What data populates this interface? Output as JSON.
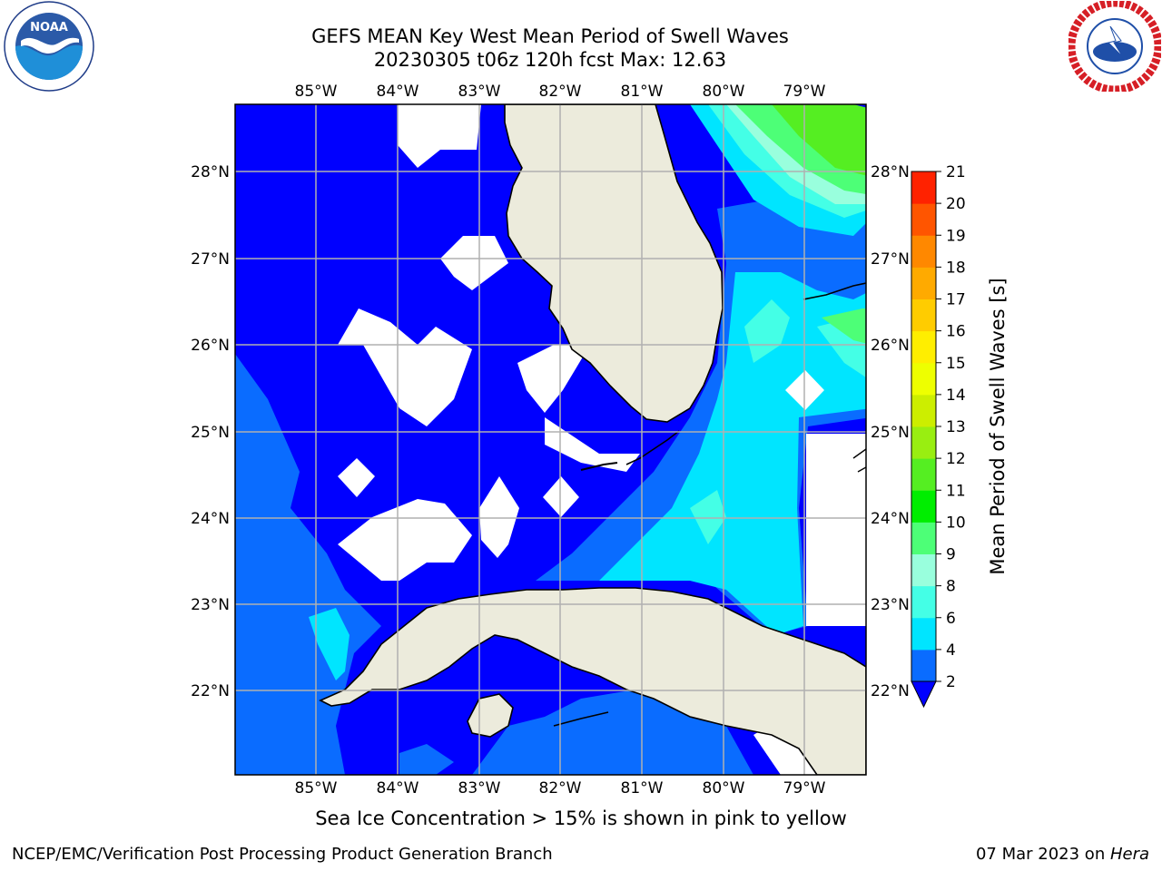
{
  "title": {
    "line1": "GEFS MEAN Key West Mean Period of Swell Waves",
    "line2": "20230305 t06z 120h fcst   Max: 12.63"
  },
  "map": {
    "lon_labels": [
      "85°W",
      "84°W",
      "83°W",
      "82°W",
      "81°W",
      "80°W",
      "79°W"
    ],
    "lat_labels": [
      "28°N",
      "27°N",
      "26°N",
      "25°N",
      "24°N",
      "23°N",
      "22°N"
    ],
    "colors": {
      "land": "#ecebdc",
      "coast": "#000000",
      "grid": "#b0b0b0",
      "frame": "#000000"
    }
  },
  "colorbar": {
    "label": "Mean Period of Swell Waves [s]",
    "levels": [
      "2",
      "4",
      "6",
      "8",
      "9",
      "10",
      "11",
      "12",
      "13",
      "14",
      "15",
      "16",
      "17",
      "18",
      "19",
      "20",
      "21"
    ],
    "colors": [
      "#0a6cff",
      "#00e5ff",
      "#44ffe6",
      "#99ffdd",
      "#4dff77",
      "#00ee00",
      "#55ee22",
      "#99ee11",
      "#ccee00",
      "#eeff00",
      "#ffee00",
      "#ffcc00",
      "#ffaa00",
      "#ff8800",
      "#ff5500",
      "#ff2200"
    ],
    "under_color": "#0000ff"
  },
  "legend_note": "Sea Ice Concentration > 15% is shown in pink to yellow",
  "footer": {
    "left": "NCEP/EMC/Verification Post Processing Product Generation Branch",
    "date": "07 Mar 2023 on ",
    "machine": "Hera"
  },
  "logos": {
    "left": "noaa-logo",
    "right": "nws-logo"
  }
}
